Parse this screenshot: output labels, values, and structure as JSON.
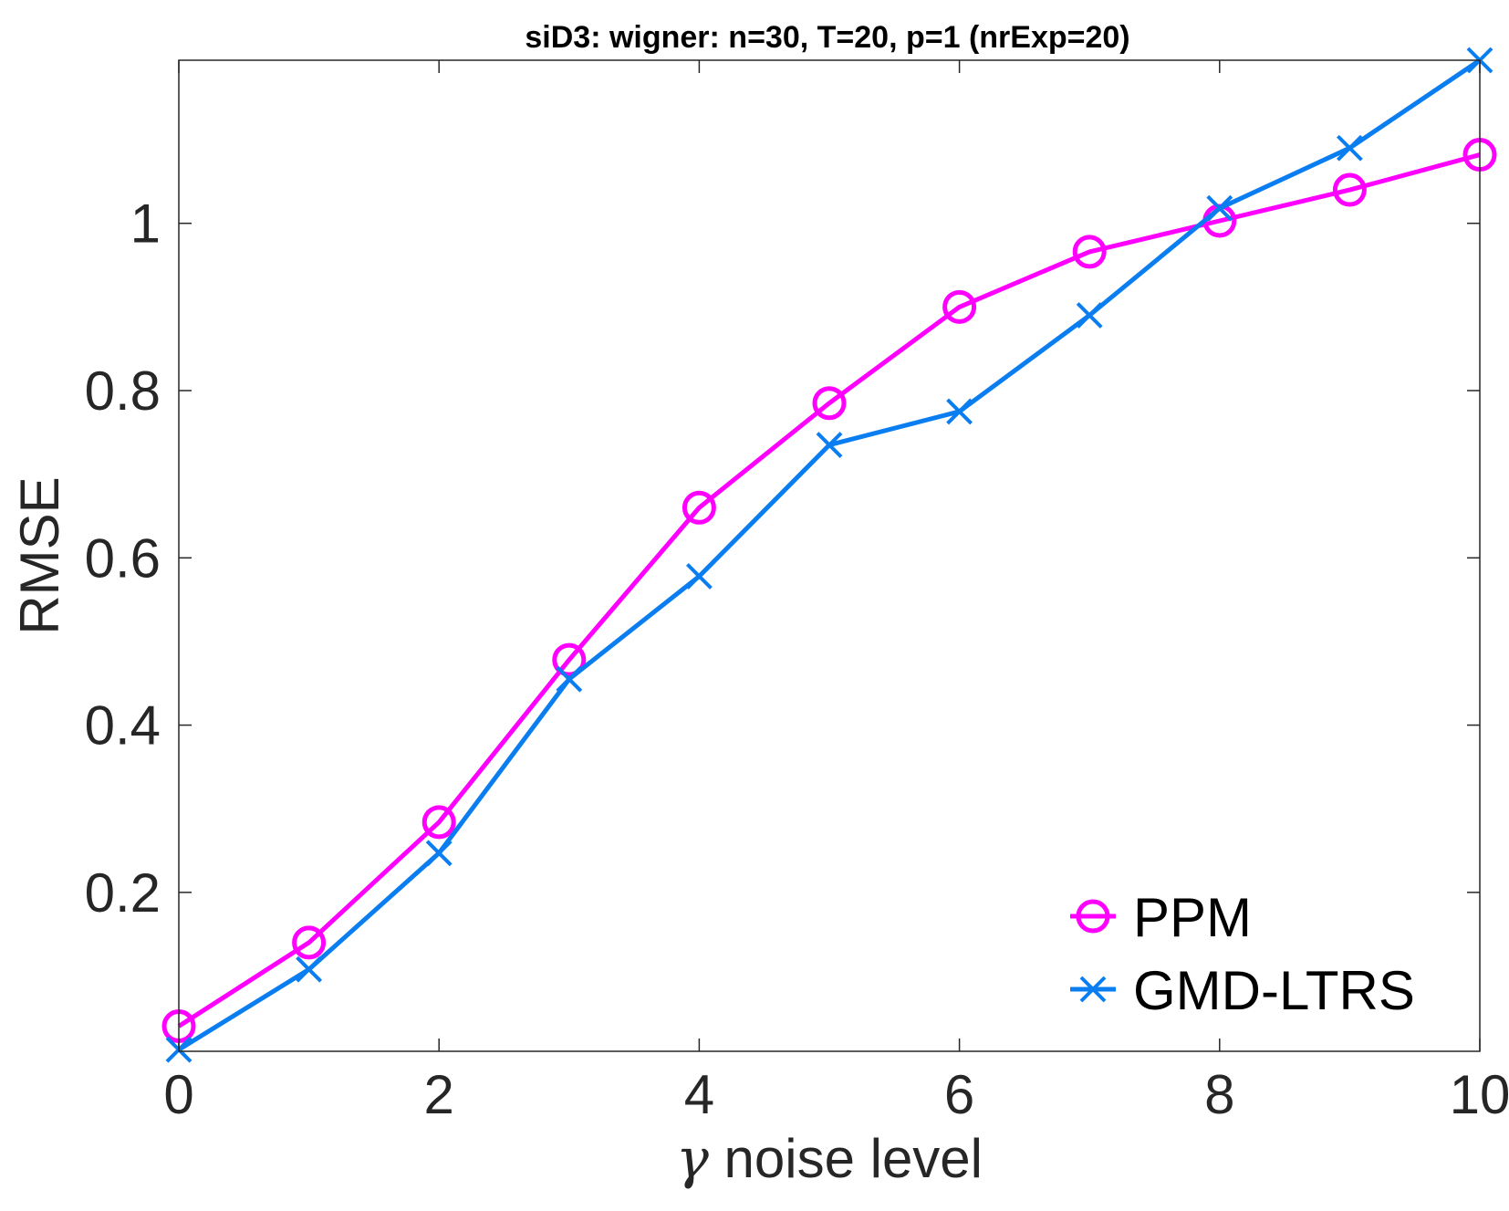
{
  "chart_data": {
    "type": "line",
    "title": "siD3: wigner: n=30, T=20, p=1 (nrExp=20)",
    "xlabel_symbol": "γ",
    "xlabel": "noise level",
    "ylabel": "RMSE",
    "xlim": [
      0,
      10
    ],
    "ylim": [
      0.01,
      1.195
    ],
    "xticks": [
      0,
      2,
      4,
      6,
      8,
      10
    ],
    "xtick_labels": [
      "0",
      "2",
      "4",
      "6",
      "8",
      "10"
    ],
    "yticks": [
      0.2,
      0.4,
      0.6,
      0.8,
      1.0
    ],
    "ytick_labels": [
      "0.2",
      "0.4",
      "0.6",
      "0.8",
      "1"
    ],
    "grid": false,
    "legend_position": "bottom-right",
    "x": [
      0,
      1,
      2,
      3,
      4,
      5,
      6,
      7,
      8,
      9,
      10
    ],
    "series": [
      {
        "name": "PPM",
        "color": "#ff00ff",
        "marker": "circle",
        "values": [
          0.04,
          0.14,
          0.284,
          0.478,
          0.66,
          0.785,
          0.9,
          0.966,
          1.003,
          1.04,
          1.082
        ]
      },
      {
        "name": "GMD-LTRS",
        "color": "#0a7ef0",
        "marker": "x",
        "values": [
          0.012,
          0.108,
          0.247,
          0.455,
          0.578,
          0.735,
          0.775,
          0.89,
          1.018,
          1.09,
          1.195
        ]
      }
    ]
  }
}
